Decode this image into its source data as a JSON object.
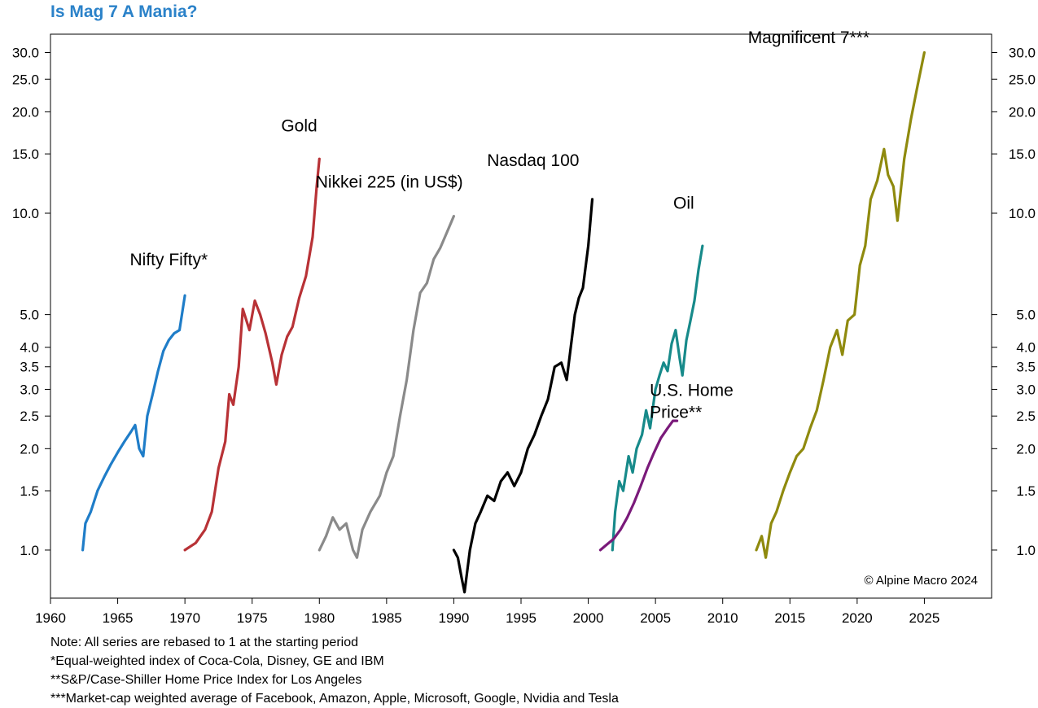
{
  "title": "Is Mag 7 A Mania?",
  "copyright": "© Alpine Macro 2024",
  "notes": [
    "Note: All series are rebased to 1 at the starting period",
    "*Equal-weighted index of Coca-Cola, Disney, GE and IBM",
    "**S&P/Case-Shiller Home Price Index for Los Angeles",
    "***Market-cap weighted average of Facebook, Amazon, Apple, Microsoft, Google, Nvidia and Tesla"
  ],
  "chart_data": {
    "type": "line",
    "y_scale": "log",
    "xlim": [
      1960,
      2030
    ],
    "ylim": [
      0.72,
      34
    ],
    "grid": false,
    "x_ticks": [
      1960,
      1965,
      1970,
      1975,
      1980,
      1985,
      1990,
      1995,
      2000,
      2005,
      2010,
      2015,
      2020,
      2025
    ],
    "y_ticks": [
      1.0,
      1.5,
      2.0,
      2.5,
      3.0,
      3.5,
      4.0,
      5.0,
      10.0,
      15.0,
      20.0,
      25.0,
      30.0
    ],
    "y_tick_labels": [
      "1.0",
      "1.5",
      "2.0",
      "2.5",
      "3.0",
      "3.5",
      "4.0",
      "5.0",
      "10.0",
      "15.0",
      "20.0",
      "25.0",
      "30.0"
    ],
    "series": [
      {
        "name": "Nifty Fifty*",
        "color": "#1f7dc8",
        "x": [
          1962.4,
          1962.6,
          1963.0,
          1963.5,
          1964.0,
          1964.5,
          1965.0,
          1965.5,
          1966.0,
          1966.3,
          1966.6,
          1966.9,
          1967.2,
          1967.6,
          1968.0,
          1968.4,
          1968.8,
          1969.2,
          1969.6,
          1970.0
        ],
        "y": [
          1.0,
          1.2,
          1.3,
          1.5,
          1.65,
          1.8,
          1.95,
          2.1,
          2.25,
          2.35,
          2.0,
          1.9,
          2.5,
          2.9,
          3.4,
          3.9,
          4.2,
          4.4,
          4.5,
          5.7
        ],
        "label_x": 1968.8,
        "label_y": 7.0
      },
      {
        "name": "Gold",
        "color": "#b83236",
        "x": [
          1970.0,
          1970.8,
          1971.5,
          1972.0,
          1972.5,
          1973.0,
          1973.3,
          1973.6,
          1974.0,
          1974.3,
          1974.8,
          1975.2,
          1975.6,
          1976.0,
          1976.5,
          1976.8,
          1977.2,
          1977.6,
          1978.0,
          1978.5,
          1979.0,
          1979.5,
          1979.8,
          1980.0
        ],
        "y": [
          1.0,
          1.05,
          1.15,
          1.3,
          1.75,
          2.1,
          2.9,
          2.7,
          3.5,
          5.2,
          4.5,
          5.5,
          5.0,
          4.4,
          3.6,
          3.1,
          3.8,
          4.3,
          4.6,
          5.6,
          6.5,
          8.5,
          12.0,
          14.5
        ],
        "label_x": 1978.5,
        "label_y": 17.5
      },
      {
        "name": "Nikkei 225 (in US$)",
        "color": "#8a8a8a",
        "x": [
          1980.0,
          1980.5,
          1981.0,
          1981.5,
          1982.0,
          1982.5,
          1982.8,
          1983.2,
          1983.8,
          1984.5,
          1985.0,
          1985.5,
          1986.0,
          1986.5,
          1987.0,
          1987.5,
          1988.0,
          1988.5,
          1989.0,
          1989.5,
          1990.0
        ],
        "y": [
          1.0,
          1.1,
          1.25,
          1.15,
          1.2,
          1.0,
          0.95,
          1.15,
          1.3,
          1.45,
          1.7,
          1.9,
          2.5,
          3.2,
          4.5,
          5.8,
          6.2,
          7.3,
          7.9,
          8.8,
          9.8
        ],
        "label_x": 1985.2,
        "label_y": 11.9
      },
      {
        "name": "Nasdaq 100",
        "color": "#000000",
        "x": [
          1990.0,
          1990.3,
          1990.6,
          1990.8,
          1991.2,
          1991.6,
          1992.0,
          1992.5,
          1993.0,
          1993.5,
          1994.0,
          1994.5,
          1995.0,
          1995.5,
          1996.0,
          1996.5,
          1997.0,
          1997.5,
          1998.0,
          1998.4,
          1998.7,
          1999.0,
          1999.3,
          1999.6,
          2000.0,
          2000.3
        ],
        "y": [
          1.0,
          0.95,
          0.82,
          0.75,
          1.0,
          1.2,
          1.3,
          1.45,
          1.4,
          1.6,
          1.7,
          1.55,
          1.7,
          2.0,
          2.2,
          2.5,
          2.8,
          3.5,
          3.6,
          3.2,
          4.0,
          5.0,
          5.6,
          6.0,
          8.0,
          11.0
        ],
        "label_x": 1995.9,
        "label_y": 13.8
      },
      {
        "name": "Oil",
        "color": "#178a8a",
        "x": [
          2001.8,
          2002.0,
          2002.3,
          2002.6,
          2003.0,
          2003.3,
          2003.6,
          2004.0,
          2004.3,
          2004.6,
          2005.0,
          2005.3,
          2005.6,
          2005.9,
          2006.2,
          2006.5,
          2006.8,
          2007.0,
          2007.3,
          2007.6,
          2007.9,
          2008.2,
          2008.5
        ],
        "y": [
          1.0,
          1.3,
          1.6,
          1.5,
          1.9,
          1.7,
          2.0,
          2.2,
          2.6,
          2.3,
          3.0,
          3.3,
          3.6,
          3.4,
          4.1,
          4.5,
          3.7,
          3.3,
          4.2,
          4.8,
          5.5,
          6.8,
          8.0
        ],
        "label_x": 2007.1,
        "label_y": 10.3
      },
      {
        "name": "U.S. Home Price**",
        "label_lines": [
          "U.S. Home",
          "Price**"
        ],
        "color": "#7a1a7a",
        "x": [
          2000.9,
          2001.4,
          2001.9,
          2002.4,
          2002.9,
          2003.4,
          2003.9,
          2004.4,
          2004.9,
          2005.4,
          2005.9,
          2006.3,
          2006.6
        ],
        "y": [
          1.0,
          1.04,
          1.08,
          1.15,
          1.25,
          1.38,
          1.55,
          1.75,
          1.95,
          2.15,
          2.3,
          2.42,
          2.42
        ],
        "label_x": 2007.6,
        "label_y": 2.87
      },
      {
        "name": "Magnificent 7***",
        "color": "#8f8a0e",
        "x": [
          2012.5,
          2012.9,
          2013.2,
          2013.6,
          2014.0,
          2014.5,
          2015.0,
          2015.5,
          2016.0,
          2016.5,
          2017.0,
          2017.5,
          2018.0,
          2018.5,
          2018.9,
          2019.3,
          2019.8,
          2020.2,
          2020.6,
          2021.0,
          2021.5,
          2022.0,
          2022.3,
          2022.7,
          2023.0,
          2023.5,
          2024.0,
          2024.5,
          2025.0
        ],
        "y": [
          1.0,
          1.1,
          0.95,
          1.2,
          1.3,
          1.5,
          1.7,
          1.9,
          2.0,
          2.3,
          2.6,
          3.2,
          4.0,
          4.5,
          3.8,
          4.8,
          5.0,
          7.0,
          8.0,
          11.0,
          12.5,
          15.5,
          13.0,
          12.0,
          9.5,
          14.5,
          19.0,
          24.0,
          30.0
        ],
        "label_x": 2016.4,
        "label_y": 32.0
      }
    ]
  }
}
